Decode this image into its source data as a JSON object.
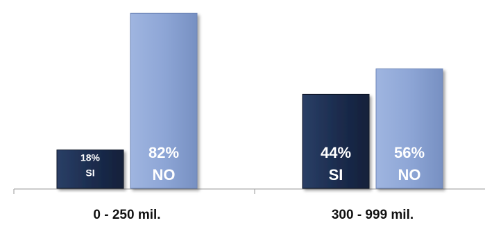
{
  "chart_data": {
    "type": "bar",
    "categories": [
      "0 - 250 mil.",
      "300 - 999 mil."
    ],
    "series": [
      {
        "values": [
          18,
          44
        ],
        "labels": [
          "18%",
          "44%"
        ],
        "sublabels": [
          "SI",
          "SI"
        ],
        "color": "#1c2d4f"
      },
      {
        "values": [
          82,
          56
        ],
        "labels": [
          "82%",
          "56%"
        ],
        "sublabels": [
          "NO",
          "NO"
        ],
        "color": "#8ea6d6"
      }
    ],
    "ylim": [
      0,
      100
    ],
    "grid": false,
    "legend": "none"
  }
}
